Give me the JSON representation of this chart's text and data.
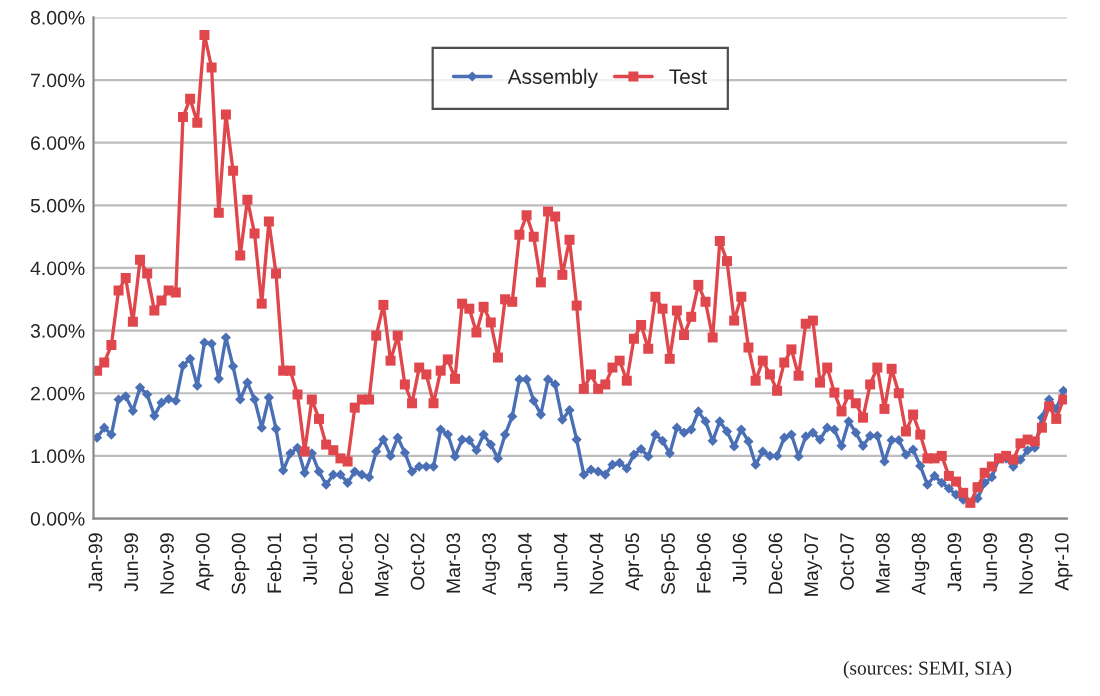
{
  "chart_data": {
    "type": "line",
    "categories": [
      "Jan-99",
      null,
      null,
      null,
      null,
      "Jun-99",
      null,
      null,
      null,
      null,
      "Nov-99",
      null,
      null,
      null,
      null,
      "Apr-00",
      null,
      null,
      null,
      null,
      "Sep-00",
      null,
      null,
      null,
      null,
      "Feb-01",
      null,
      null,
      null,
      null,
      "Jul-01",
      null,
      null,
      null,
      null,
      "Dec-01",
      null,
      null,
      null,
      null,
      "May-02",
      null,
      null,
      null,
      null,
      "Oct-02",
      null,
      null,
      null,
      null,
      "Mar-03",
      null,
      null,
      null,
      null,
      "Aug-03",
      null,
      null,
      null,
      null,
      "Jan-04",
      null,
      null,
      null,
      null,
      "Jun-04",
      null,
      null,
      null,
      null,
      "Nov-04",
      null,
      null,
      null,
      null,
      "Apr-05",
      null,
      null,
      null,
      null,
      "Sep-05",
      null,
      null,
      null,
      null,
      "Feb-06",
      null,
      null,
      null,
      null,
      "Jul-06",
      null,
      null,
      null,
      null,
      "Dec-06",
      null,
      null,
      null,
      null,
      "May-07",
      null,
      null,
      null,
      null,
      "Oct-07",
      null,
      null,
      null,
      null,
      "Mar-08",
      null,
      null,
      null,
      null,
      "Aug-08",
      null,
      null,
      null,
      null,
      "Jan-09",
      null,
      null,
      null,
      null,
      "Jun-09",
      null,
      null,
      null,
      null,
      "Nov-09",
      null,
      null,
      null,
      null,
      "Apr-10"
    ],
    "series": [
      {
        "name": "Assembly",
        "color": "#4a6fb5",
        "marker": "diamond",
        "values": [
          1.29,
          1.45,
          1.34,
          1.9,
          1.95,
          1.72,
          2.09,
          1.98,
          1.64,
          1.85,
          1.91,
          1.88,
          2.44,
          2.55,
          2.12,
          2.81,
          2.79,
          2.23,
          2.89,
          2.43,
          1.9,
          2.17,
          1.9,
          1.45,
          1.93,
          1.43,
          0.77,
          1.04,
          1.13,
          0.73,
          1.04,
          0.75,
          0.54,
          0.7,
          0.7,
          0.57,
          0.75,
          0.7,
          0.66,
          1.07,
          1.26,
          1.0,
          1.29,
          1.05,
          0.75,
          0.83,
          0.83,
          0.83,
          1.42,
          1.34,
          0.99,
          1.26,
          1.25,
          1.09,
          1.34,
          1.18,
          0.96,
          1.34,
          1.63,
          2.22,
          2.22,
          1.88,
          1.66,
          2.22,
          2.14,
          1.58,
          1.73,
          1.26,
          0.7,
          0.78,
          0.75,
          0.7,
          0.86,
          0.89,
          0.8,
          1.02,
          1.11,
          0.99,
          1.34,
          1.24,
          1.04,
          1.45,
          1.37,
          1.42,
          1.71,
          1.55,
          1.24,
          1.55,
          1.39,
          1.15,
          1.42,
          1.23,
          0.86,
          1.07,
          1.0,
          1.0,
          1.29,
          1.34,
          0.99,
          1.31,
          1.37,
          1.26,
          1.45,
          1.42,
          1.16,
          1.55,
          1.37,
          1.16,
          1.32,
          1.32,
          0.91,
          1.25,
          1.25,
          1.02,
          1.1,
          0.84,
          0.54,
          0.68,
          0.57,
          0.48,
          0.38,
          0.3,
          0.25,
          0.32,
          0.57,
          0.66,
          0.96,
          0.96,
          0.83,
          0.94,
          1.09,
          1.13,
          1.61,
          1.9,
          1.75,
          2.04
        ]
      },
      {
        "name": "Test",
        "color": "#e0474c",
        "marker": "square",
        "values": [
          2.36,
          2.49,
          2.77,
          3.64,
          3.84,
          3.14,
          4.13,
          3.91,
          3.32,
          3.48,
          3.64,
          3.61,
          6.41,
          6.7,
          6.32,
          7.72,
          7.2,
          4.88,
          6.45,
          5.55,
          4.2,
          5.09,
          4.55,
          3.43,
          4.74,
          3.91,
          2.36,
          2.36,
          1.98,
          1.07,
          1.9,
          1.59,
          1.18,
          1.09,
          0.96,
          0.91,
          1.77,
          1.9,
          1.9,
          2.92,
          3.41,
          2.52,
          2.92,
          2.14,
          1.84,
          2.41,
          2.3,
          1.84,
          2.36,
          2.54,
          2.23,
          3.43,
          3.35,
          2.97,
          3.38,
          3.13,
          2.57,
          3.5,
          3.46,
          4.53,
          4.84,
          4.5,
          3.77,
          4.9,
          4.82,
          3.89,
          4.45,
          3.4,
          2.07,
          2.3,
          2.07,
          2.14,
          2.41,
          2.52,
          2.2,
          2.87,
          3.09,
          2.71,
          3.54,
          3.35,
          2.55,
          3.32,
          2.93,
          3.22,
          3.73,
          3.46,
          2.89,
          4.43,
          4.11,
          3.16,
          3.54,
          2.73,
          2.2,
          2.52,
          2.3,
          2.04,
          2.49,
          2.7,
          2.28,
          3.11,
          3.16,
          2.17,
          2.41,
          2.01,
          1.71,
          1.98,
          1.84,
          1.61,
          2.14,
          2.41,
          1.75,
          2.39,
          2.0,
          1.39,
          1.66,
          1.34,
          0.96,
          0.96,
          1.0,
          0.68,
          0.59,
          0.41,
          0.25,
          0.5,
          0.73,
          0.83,
          0.96,
          1.0,
          0.94,
          1.2,
          1.26,
          1.23,
          1.45,
          1.79,
          1.59,
          1.9
        ]
      }
    ],
    "ylim": [
      0,
      8
    ],
    "yticks": [
      {
        "value": 0,
        "label": "0.00%"
      },
      {
        "value": 1,
        "label": "1.00%"
      },
      {
        "value": 2,
        "label": "2.00%"
      },
      {
        "value": 3,
        "label": "3.00%"
      },
      {
        "value": 4,
        "label": "4.00%"
      },
      {
        "value": 5,
        "label": "5.00%"
      },
      {
        "value": 6,
        "label": "6.00%"
      },
      {
        "value": 7,
        "label": "7.00%"
      },
      {
        "value": 8,
        "label": "8.00%"
      }
    ],
    "grid": "y",
    "legend": "top",
    "line_style": "solid",
    "annotations": [
      "(sources: SEMI, SIA)"
    ]
  }
}
